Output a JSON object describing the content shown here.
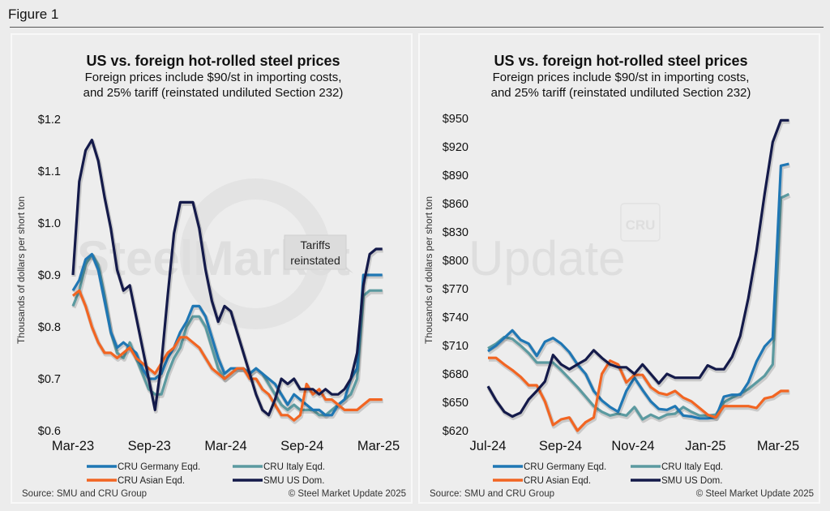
{
  "figure_title": "Figure 1",
  "colors": {
    "germany": "#1f77b4",
    "italy": "#5b9aa0",
    "asian": "#f26522",
    "us": "#141a4a"
  },
  "watermark": {
    "text_bold": "SteelMarket",
    "text_light": "Update",
    "logo": "CRU"
  },
  "chart_data": [
    {
      "type": "line",
      "title": "US vs. foreign hot-rolled steel prices",
      "subtitle_line1": "Foreign prices include $90/st in importing costs,",
      "subtitle_line2": "and 25% tariff (reinstated undiluted Section 232)",
      "ylabel": "Thousands of dollars per short ton",
      "xlabel": "",
      "ylim": [
        0.6,
        1.2
      ],
      "yticks": [
        0.6,
        0.7,
        0.8,
        0.9,
        1.0,
        1.1,
        1.2
      ],
      "ytick_labels": [
        "$0.6",
        "$0.7",
        "$0.8",
        "$0.9",
        "$1.0",
        "$1.1",
        "$1.2"
      ],
      "xticks": [
        "Mar-23",
        "Sep-23",
        "Mar-24",
        "Sep-24",
        "Mar-25"
      ],
      "x_range_months": [
        0,
        24
      ],
      "annotation": {
        "text_line1": "Tariffs",
        "text_line2": "reinstated",
        "at_month": 24
      },
      "legend": [
        "CRU Germany Eqd.",
        "CRU Italy Eqd.",
        "CRU Asian Eqd.",
        "SMU US Dom."
      ],
      "legend_position": "bottom",
      "source": "Source: SMU and CRU Group",
      "copyright": "© Steel Market Update 2025",
      "x_months": [
        0,
        0.5,
        1,
        1.5,
        2,
        2.5,
        3,
        3.5,
        4,
        4.5,
        5,
        5.5,
        6,
        6.5,
        7,
        7.5,
        8,
        8.5,
        9,
        9.5,
        10,
        10.5,
        11,
        11.5,
        12,
        12.5,
        13,
        13.5,
        14,
        14.5,
        15,
        15.5,
        16,
        16.5,
        17,
        17.5,
        18,
        18.5,
        19,
        19.5,
        20,
        20.5,
        21,
        21.5,
        22,
        22.5,
        23,
        23.5,
        24,
        24.3
      ],
      "series": [
        {
          "name": "CRU Germany Eqd.",
          "key": "germany",
          "values": [
            0.87,
            0.89,
            0.93,
            0.94,
            0.91,
            0.85,
            0.79,
            0.76,
            0.77,
            0.76,
            0.75,
            0.72,
            0.7,
            0.7,
            0.71,
            0.74,
            0.76,
            0.79,
            0.81,
            0.84,
            0.84,
            0.82,
            0.78,
            0.74,
            0.71,
            0.72,
            0.72,
            0.72,
            0.71,
            0.72,
            0.71,
            0.7,
            0.69,
            0.67,
            0.65,
            0.67,
            0.66,
            0.65,
            0.64,
            0.64,
            0.63,
            0.63,
            0.65,
            0.66,
            0.7,
            0.72,
            0.9,
            0.9,
            0.9,
            0.9
          ]
        },
        {
          "name": "CRU Italy Eqd.",
          "key": "italy",
          "values": [
            0.84,
            0.87,
            0.92,
            0.94,
            0.92,
            0.86,
            0.79,
            0.75,
            0.74,
            0.77,
            0.74,
            0.71,
            0.68,
            0.67,
            0.67,
            0.71,
            0.74,
            0.76,
            0.8,
            0.82,
            0.82,
            0.8,
            0.76,
            0.72,
            0.7,
            0.71,
            0.72,
            0.72,
            0.71,
            0.72,
            0.71,
            0.69,
            0.67,
            0.65,
            0.64,
            0.65,
            0.64,
            0.64,
            0.64,
            0.63,
            0.63,
            0.64,
            0.65,
            0.66,
            0.67,
            0.7,
            0.86,
            0.87,
            0.87,
            0.87
          ]
        },
        {
          "name": "CRU Asian Eqd.",
          "key": "asian",
          "values": [
            0.86,
            0.87,
            0.84,
            0.8,
            0.77,
            0.75,
            0.75,
            0.74,
            0.75,
            0.76,
            0.74,
            0.73,
            0.72,
            0.71,
            0.73,
            0.75,
            0.76,
            0.78,
            0.78,
            0.77,
            0.76,
            0.74,
            0.72,
            0.71,
            0.7,
            0.71,
            0.72,
            0.72,
            0.7,
            0.7,
            0.68,
            0.67,
            0.65,
            0.63,
            0.63,
            0.62,
            0.63,
            0.69,
            0.67,
            0.68,
            0.66,
            0.66,
            0.65,
            0.64,
            0.64,
            0.64,
            0.65,
            0.66,
            0.66,
            0.66
          ]
        },
        {
          "name": "SMU US Dom.",
          "key": "us",
          "values": [
            0.9,
            1.08,
            1.14,
            1.16,
            1.12,
            1.05,
            0.99,
            0.91,
            0.87,
            0.88,
            0.82,
            0.76,
            0.7,
            0.64,
            0.73,
            0.86,
            0.98,
            1.04,
            1.04,
            1.04,
            0.99,
            0.91,
            0.85,
            0.81,
            0.84,
            0.83,
            0.79,
            0.75,
            0.71,
            0.67,
            0.64,
            0.63,
            0.66,
            0.7,
            0.69,
            0.7,
            0.68,
            0.68,
            0.68,
            0.67,
            0.68,
            0.67,
            0.67,
            0.68,
            0.7,
            0.75,
            0.88,
            0.94,
            0.95,
            0.95
          ]
        }
      ]
    },
    {
      "type": "line",
      "title": "US vs. foreign hot-rolled steel prices",
      "subtitle_line1": "Foreign prices include $90/st in importing costs,",
      "subtitle_line2": "and 25% tariff (reinstated undiluted Section 232)",
      "ylabel": "Thousands of dollars per short ton",
      "xlabel": "",
      "ylim": [
        620,
        950
      ],
      "yticks": [
        620,
        650,
        680,
        710,
        740,
        770,
        800,
        830,
        860,
        890,
        920,
        950
      ],
      "ytick_labels": [
        "$620",
        "$650",
        "$680",
        "$710",
        "$740",
        "$770",
        "$800",
        "$830",
        "$860",
        "$890",
        "$920",
        "$950"
      ],
      "xticks": [
        "Jul-24",
        "Sep-24",
        "Nov-24",
        "Jan-25",
        "Mar-25"
      ],
      "x_range_months": [
        0,
        8
      ],
      "legend": [
        "CRU Germany Eqd.",
        "CRU Italy Eqd.",
        "CRU Asian Eqd.",
        "SMU US Dom."
      ],
      "legend_position": "bottom",
      "source": "Source: SMU and CRU Group",
      "copyright": "© Steel Market Update 2025",
      "x_months": [
        0,
        0.25,
        0.5,
        0.75,
        1,
        1.25,
        1.5,
        1.75,
        2,
        2.25,
        2.5,
        2.75,
        3,
        3.25,
        3.5,
        3.75,
        4,
        4.25,
        4.5,
        4.75,
        5,
        5.25,
        5.5,
        5.75,
        6,
        6.25,
        6.5,
        6.75,
        7,
        7.25,
        7.5,
        7.75,
        8
      ],
      "series": [
        {
          "name": "CRU Germany Eqd.",
          "key": "germany",
          "values": [
            704,
            710,
            718,
            726,
            716,
            712,
            699,
            714,
            718,
            712,
            703,
            690,
            680,
            662,
            652,
            645,
            640,
            662,
            676,
            663,
            651,
            643,
            642,
            646,
            636,
            635,
            633,
            633,
            634,
            656,
            658,
            658,
            671,
            693,
            709,
            718,
            900,
            902
          ]
        },
        {
          "name": "CRU Italy Eqd.",
          "key": "italy",
          "values": [
            707,
            712,
            719,
            717,
            710,
            702,
            692,
            692,
            692,
            684,
            675,
            666,
            656,
            646,
            640,
            636,
            638,
            636,
            645,
            632,
            637,
            633,
            637,
            638,
            645,
            640,
            636,
            636,
            637,
            650,
            655,
            659,
            664,
            671,
            678,
            690,
            866,
            870
          ]
        },
        {
          "name": "CRU Asian Eqd.",
          "key": "asian",
          "values": [
            697,
            697,
            690,
            684,
            677,
            668,
            668,
            651,
            626,
            632,
            634,
            620,
            629,
            634,
            680,
            694,
            690,
            671,
            679,
            679,
            666,
            660,
            658,
            662,
            655,
            651,
            644,
            637,
            634,
            646,
            646,
            646,
            646,
            644,
            654,
            656,
            662,
            662
          ]
        },
        {
          "name": "SMU US Dom.",
          "key": "us",
          "values": [
            667,
            652,
            640,
            635,
            639,
            653,
            662,
            672,
            700,
            690,
            685,
            690,
            695,
            705,
            697,
            690,
            687,
            687,
            680,
            690,
            680,
            670,
            680,
            676,
            676,
            676,
            676,
            689,
            685,
            685,
            698,
            720,
            760,
            810,
            870,
            925,
            948,
            948
          ]
        }
      ],
      "x_months_full": [
        0,
        0.22,
        0.44,
        0.66,
        0.88,
        1.1,
        1.32,
        1.54,
        1.76,
        1.98,
        2.2,
        2.42,
        2.64,
        2.86,
        3.08,
        3.3,
        3.52,
        3.74,
        3.96,
        4.18,
        4.4,
        4.62,
        4.84,
        5.06,
        5.28,
        5.5,
        5.72,
        5.94,
        6.16,
        6.38,
        6.6,
        6.82,
        7.04,
        7.26,
        7.48,
        7.7,
        7.8,
        8.1
      ]
    }
  ]
}
